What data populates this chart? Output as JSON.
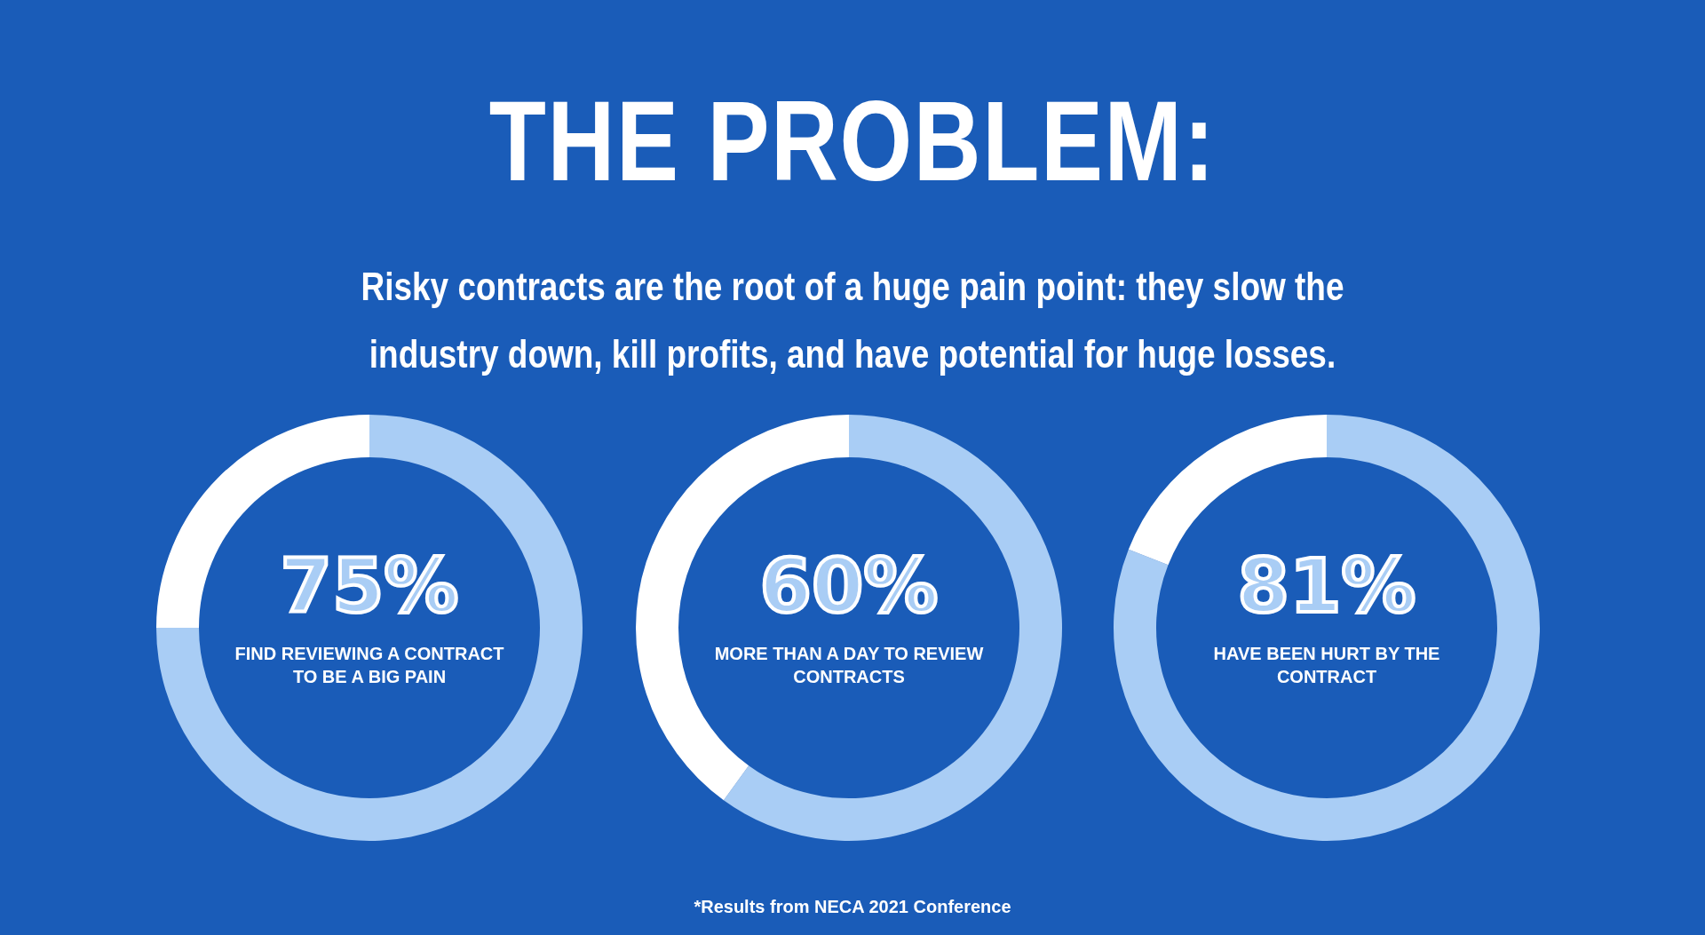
{
  "chart_data": [
    {
      "type": "other",
      "title": "THE PROBLEM:",
      "subtitle": "Risky contracts are the root of a huge pain point: they slow the industry down, kill profits, and have potential for huge losses.",
      "annotations": [
        "*Results from NECA 2021 Conference"
      ]
    },
    {
      "type": "donut",
      "title": "FIND REVIEWING A CONTRACT TO BE A BIG PAIN",
      "categories": [
        null,
        null
      ],
      "values": [
        75,
        25
      ],
      "colors": [
        "#a9cdf5",
        "#ffffff"
      ],
      "value_labels": [
        "75%",
        null
      ]
    },
    {
      "type": "donut",
      "title": "MORE THAN A DAY TO REVIEW CONTRACTS",
      "categories": [
        null,
        null
      ],
      "values": [
        60,
        40
      ],
      "colors": [
        "#a9cdf5",
        "#ffffff"
      ],
      "value_labels": [
        "60%",
        null
      ]
    },
    {
      "type": "donut",
      "title": "HAVE BEEN HURT BY THE CONTRACT",
      "categories": [
        null,
        null
      ],
      "values": [
        81,
        19
      ],
      "colors": [
        "#a9cdf5",
        "#ffffff"
      ],
      "value_labels": [
        "81%",
        null
      ]
    }
  ]
}
